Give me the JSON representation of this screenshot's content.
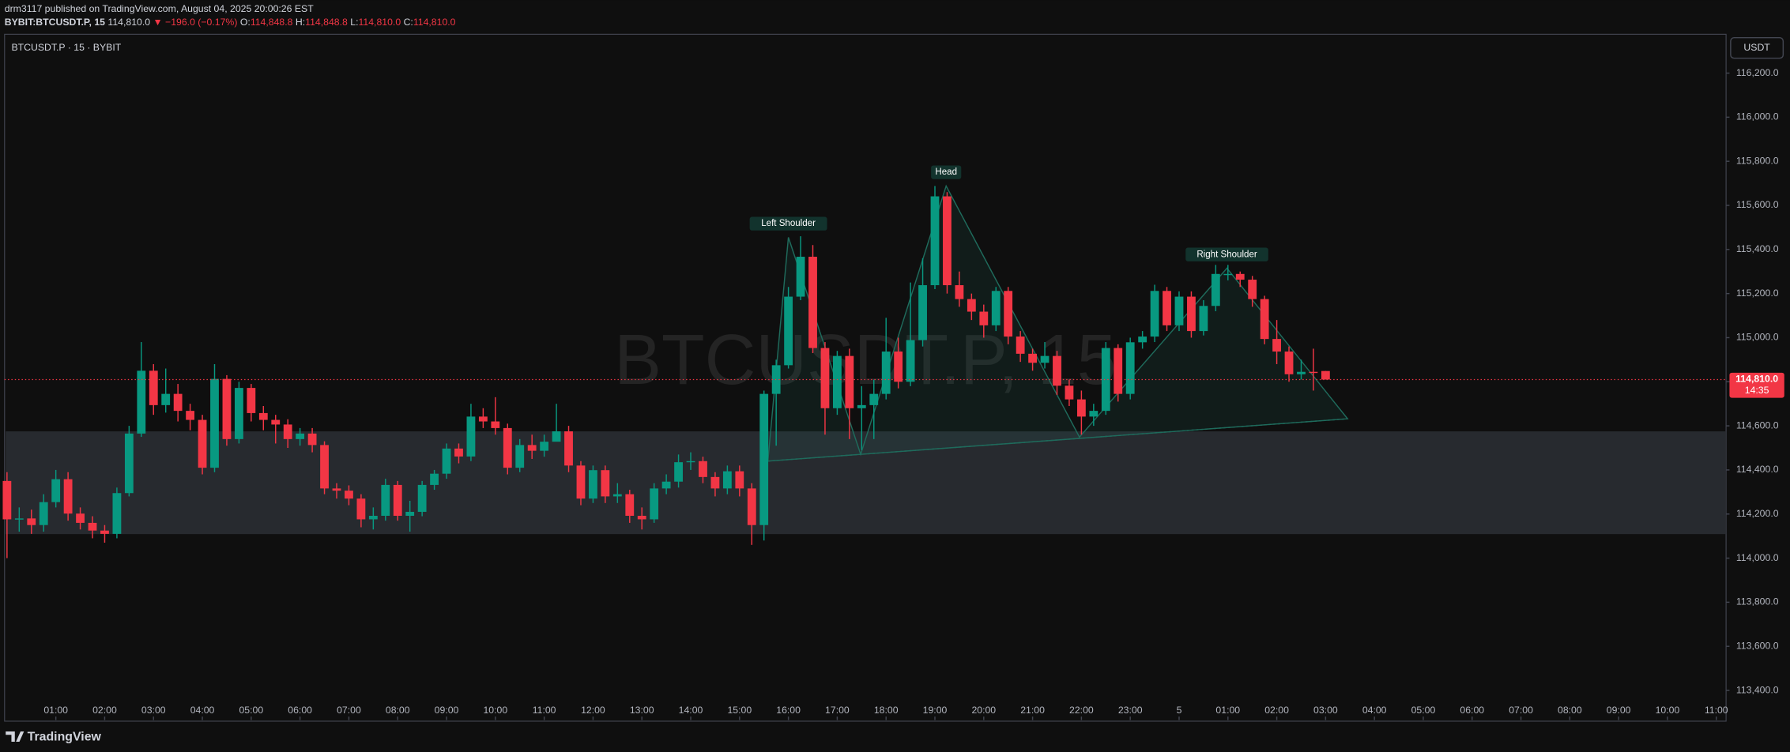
{
  "header": {
    "publisher": "drm3117 published on TradingView.com, August 04, 2025 20:00:26 EST",
    "symbol": "BYBIT:BTCUSDT.P, 15",
    "last": "114,810.0",
    "change": "▼ −196.0 (−0.17%)",
    "ohlc": [
      {
        "key": "O:",
        "text": "114,848.8"
      },
      {
        "key": "H:",
        "text": "114,848.8"
      },
      {
        "key": "L:",
        "text": "114,810.0"
      },
      {
        "key": "C:",
        "text": "114,810.0"
      }
    ],
    "legend": "BTCUSDT.P · 15 · BYBIT",
    "currency": "USDT",
    "brand": "TradingView"
  },
  "chart_data": {
    "type": "candlestick",
    "watermark": "BTCUSDT.P, 15",
    "up_color": "#089981",
    "down_color": "#f23645",
    "xlim": [
      -0.05,
      35.2
    ],
    "ylim": [
      113364,
      116371
    ],
    "xticks": [
      {
        "value": 1,
        "label": "01:00"
      },
      {
        "value": 2,
        "label": "02:00"
      },
      {
        "value": 3,
        "label": "03:00"
      },
      {
        "value": 4,
        "label": "04:00"
      },
      {
        "value": 5,
        "label": "05:00"
      },
      {
        "value": 6,
        "label": "06:00"
      },
      {
        "value": 7,
        "label": "07:00"
      },
      {
        "value": 8,
        "label": "08:00"
      },
      {
        "value": 9,
        "label": "09:00"
      },
      {
        "value": 10,
        "label": "10:00"
      },
      {
        "value": 11,
        "label": "11:00"
      },
      {
        "value": 12,
        "label": "12:00"
      },
      {
        "value": 13,
        "label": "13:00"
      },
      {
        "value": 14,
        "label": "14:00"
      },
      {
        "value": 15,
        "label": "15:00"
      },
      {
        "value": 16,
        "label": "16:00"
      },
      {
        "value": 17,
        "label": "17:00"
      },
      {
        "value": 18,
        "label": "18:00"
      },
      {
        "value": 19,
        "label": "19:00"
      },
      {
        "value": 20,
        "label": "20:00"
      },
      {
        "value": 21,
        "label": "21:00"
      },
      {
        "value": 22,
        "label": "22:00"
      },
      {
        "value": 23,
        "label": "23:00"
      },
      {
        "value": 24,
        "label": "5"
      },
      {
        "value": 25,
        "label": "01:00"
      },
      {
        "value": 26,
        "label": "02:00"
      },
      {
        "value": 27,
        "label": "03:00"
      },
      {
        "value": 28,
        "label": "04:00"
      },
      {
        "value": 29,
        "label": "05:00"
      },
      {
        "value": 30,
        "label": "06:00"
      },
      {
        "value": 31,
        "label": "07:00"
      },
      {
        "value": 32,
        "label": "08:00"
      },
      {
        "value": 33,
        "label": "09:00"
      },
      {
        "value": 34,
        "label": "10:00"
      },
      {
        "value": 35,
        "label": "11:00"
      }
    ],
    "yticks": [
      {
        "value": 113400,
        "label": "113,400.0"
      },
      {
        "value": 113600,
        "label": "113,600.0"
      },
      {
        "value": 113800,
        "label": "113,800.0"
      },
      {
        "value": 114000,
        "label": "114,000.0"
      },
      {
        "value": 114200,
        "label": "114,200.0"
      },
      {
        "value": 114400,
        "label": "114,400.0"
      },
      {
        "value": 114600,
        "label": "114,600.0"
      },
      {
        "value": 114800,
        "label": "114,800.0"
      },
      {
        "value": 115000,
        "label": "115,000.0"
      },
      {
        "value": 115200,
        "label": "115,200.0"
      },
      {
        "value": 115400,
        "label": "115,400.0"
      },
      {
        "value": 115600,
        "label": "115,600.0"
      },
      {
        "value": 115800,
        "label": "115,800.0"
      },
      {
        "value": 116000,
        "label": "116,000.0"
      },
      {
        "value": 116200,
        "label": "116,200.0"
      }
    ],
    "x": [
      0,
      0.25,
      0.5,
      0.75,
      1,
      1.25,
      1.5,
      1.75,
      2,
      2.25,
      2.5,
      2.75,
      3,
      3.25,
      3.5,
      3.75,
      4,
      4.25,
      4.5,
      4.75,
      5,
      5.25,
      5.5,
      5.75,
      6,
      6.25,
      6.5,
      6.75,
      7,
      7.25,
      7.5,
      7.75,
      8,
      8.25,
      8.5,
      8.75,
      9,
      9.25,
      9.5,
      9.75,
      10,
      10.25,
      10.5,
      10.75,
      11,
      11.25,
      11.5,
      11.75,
      12,
      12.25,
      12.5,
      12.75,
      13,
      13.25,
      13.5,
      13.75,
      14,
      14.25,
      14.5,
      14.75,
      15,
      15.25,
      15.5,
      15.75,
      16,
      16.25,
      16.5,
      16.75,
      17,
      17.25,
      17.5,
      17.75,
      18,
      18.25,
      18.5,
      18.75,
      19,
      19.25,
      19.5,
      19.75,
      20,
      20.25,
      20.5,
      20.75,
      21,
      21.25,
      21.5,
      21.75,
      22,
      22.25,
      22.5,
      22.75,
      23,
      23.25,
      23.5,
      23.75,
      24,
      24.25,
      24.5,
      24.75,
      25,
      25.25,
      25.5,
      25.75,
      26,
      26.25,
      26.5,
      26.75,
      27
    ],
    "open": [
      114350,
      114176,
      114180,
      114150,
      114254,
      114358,
      114202,
      114160,
      114125,
      114110,
      114295,
      114565,
      114850,
      114694,
      114745,
      114668,
      114627,
      114410,
      114813,
      114540,
      114772,
      114658,
      114627,
      114606,
      114540,
      114565,
      114513,
      114316,
      114306,
      114270,
      114176,
      114192,
      114332,
      114192,
      114210,
      114332,
      114383,
      114497,
      114461,
      114642,
      114620,
      114590,
      114410,
      114513,
      114487,
      114528,
      114575,
      114420,
      114270,
      114399,
      114280,
      114290,
      114192,
      114176,
      114316,
      114347,
      114435,
      114440,
      114368,
      114316,
      114394,
      114316,
      114150,
      114745,
      114875,
      115186,
      115367,
      114953,
      114680,
      114917,
      114680,
      114694,
      114745,
      114937,
      114800,
      114989,
      115238,
      115641,
      115238,
      115175,
      115118,
      115056,
      115212,
      115005,
      114927,
      114886,
      114917,
      114782,
      114720,
      114642,
      114668,
      114953,
      114745,
      114979,
      115005,
      115212,
      115056,
      115186,
      115030,
      115144,
      115289,
      115289,
      115263,
      115175,
      114994,
      114937,
      114834,
      114845,
      114848.8
    ],
    "high": [
      114390,
      114230,
      114220,
      114290,
      114400,
      114390,
      114230,
      114190,
      114150,
      114320,
      114600,
      114980,
      114880,
      114860,
      114790,
      114700,
      114650,
      114880,
      114830,
      114800,
      114790,
      114690,
      114650,
      114630,
      114590,
      114590,
      114530,
      114340,
      114330,
      114290,
      114230,
      114360,
      114350,
      114260,
      114350,
      114400,
      114520,
      114520,
      114700,
      114680,
      114730,
      114610,
      114540,
      114560,
      114560,
      114700,
      114600,
      114440,
      114420,
      114420,
      114340,
      114310,
      114230,
      114340,
      114380,
      114470,
      114480,
      114460,
      114390,
      114420,
      114420,
      114340,
      114760,
      114900,
      115230,
      115460,
      115420,
      114980,
      114940,
      114950,
      114780,
      114810,
      115090,
      115000,
      115250,
      115360,
      115688,
      115660,
      115300,
      115200,
      115150,
      115230,
      115230,
      115030,
      114950,
      114980,
      114940,
      114810,
      114760,
      114700,
      114980,
      114970,
      115000,
      115030,
      115240,
      115230,
      115210,
      115210,
      115170,
      115330,
      115330,
      115300,
      115280,
      115190,
      115080,
      114960,
      114900,
      114950,
      114848.8
    ],
    "low": [
      114000,
      114120,
      114110,
      114120,
      114230,
      114170,
      114130,
      114090,
      114070,
      114090,
      114280,
      114550,
      114650,
      114660,
      114620,
      114580,
      114380,
      114390,
      114510,
      114520,
      114620,
      114580,
      114520,
      114500,
      114510,
      114480,
      114290,
      114270,
      114240,
      114140,
      114130,
      114170,
      114170,
      114120,
      114190,
      114310,
      114360,
      114430,
      114440,
      114590,
      114560,
      114380,
      114390,
      114450,
      114460,
      114540,
      114390,
      114240,
      114250,
      114250,
      114250,
      114160,
      114130,
      114160,
      114290,
      114320,
      114400,
      114340,
      114280,
      114290,
      114280,
      114060,
      114080,
      114510,
      114860,
      115170,
      114930,
      114560,
      114650,
      114540,
      114490,
      114540,
      114720,
      114770,
      114780,
      114960,
      115220,
      115200,
      115140,
      115080,
      115000,
      115030,
      114970,
      114890,
      114850,
      114860,
      114740,
      114690,
      114560,
      114600,
      114650,
      114710,
      114720,
      114950,
      114980,
      115030,
      115030,
      115000,
      115010,
      115120,
      115260,
      115230,
      115140,
      114970,
      114880,
      114800,
      114810,
      114760,
      114810
    ],
    "close": [
      114176,
      114180,
      114150,
      114254,
      114358,
      114202,
      114160,
      114125,
      114110,
      114295,
      114565,
      114850,
      114694,
      114745,
      114668,
      114627,
      114410,
      114813,
      114540,
      114772,
      114658,
      114627,
      114606,
      114540,
      114565,
      114513,
      114316,
      114306,
      114270,
      114176,
      114192,
      114332,
      114192,
      114210,
      114332,
      114383,
      114497,
      114461,
      114642,
      114620,
      114590,
      114410,
      114513,
      114487,
      114528,
      114575,
      114420,
      114270,
      114399,
      114280,
      114290,
      114192,
      114176,
      114316,
      114347,
      114435,
      114440,
      114368,
      114316,
      114394,
      114316,
      114150,
      114745,
      114875,
      115186,
      115367,
      114953,
      114680,
      114917,
      114680,
      114694,
      114745,
      114937,
      114800,
      114989,
      115238,
      115641,
      115238,
      115175,
      115118,
      115056,
      115212,
      115005,
      114927,
      114886,
      114917,
      114782,
      114720,
      114642,
      114668,
      114953,
      114745,
      114979,
      115005,
      115212,
      115056,
      115186,
      115030,
      115144,
      115289,
      115289,
      115263,
      115175,
      114994,
      114937,
      114834,
      114845,
      114840,
      114810
    ],
    "last_price": {
      "value": 114810,
      "label": "114,810.0"
    },
    "countdown": "14:35",
    "zone": {
      "top": 114575,
      "bottom": 114109,
      "color": "#2a2d33"
    },
    "pattern": {
      "color": "#1f6b5c",
      "points": [
        {
          "x": 15.58,
          "y": 114440
        },
        {
          "x": 16.0,
          "y": 115455
        },
        {
          "x": 17.48,
          "y": 114471
        },
        {
          "x": 19.23,
          "y": 115688
        },
        {
          "x": 21.96,
          "y": 114549
        },
        {
          "x": 24.98,
          "y": 115315
        },
        {
          "x": 27.45,
          "y": 114632
        }
      ],
      "labels": [
        {
          "text": "Left Shoulder",
          "point": 1
        },
        {
          "text": "Head",
          "point": 3
        },
        {
          "text": "Right Shoulder",
          "point": 5
        }
      ]
    }
  }
}
